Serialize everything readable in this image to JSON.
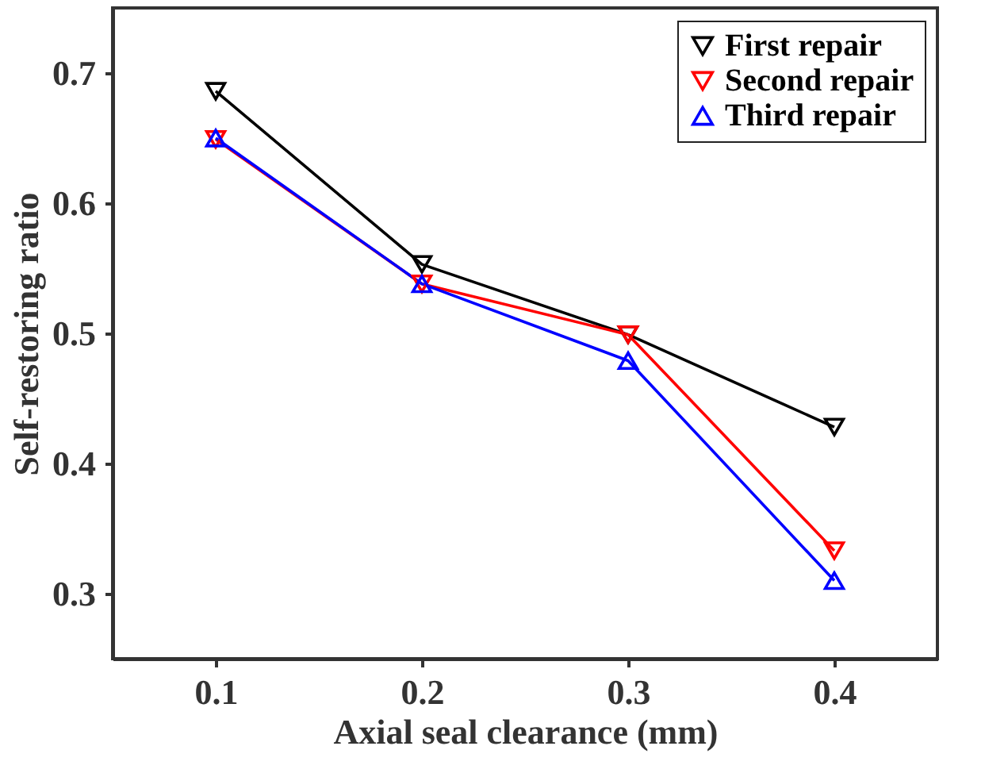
{
  "chart_data": {
    "type": "line",
    "xlabel": "Axial seal clearance (mm)",
    "ylabel": "Self-restoring ratio",
    "x": [
      0.1,
      0.2,
      0.3,
      0.4
    ],
    "xlim": [
      0.05,
      0.45
    ],
    "xticks": [
      0.1,
      0.2,
      0.3,
      0.4
    ],
    "ylim": [
      0.25,
      0.75
    ],
    "yticks": [
      0.3,
      0.4,
      0.5,
      0.6,
      0.7
    ],
    "grid": false,
    "legend": "top right",
    "line_style": "solid",
    "series": [
      {
        "name": "First repair",
        "color": "#000000",
        "marker": "triangle-down",
        "values": [
          0.686,
          0.553,
          0.499,
          0.428
        ]
      },
      {
        "name": "Second repair",
        "color": "#ff0000",
        "marker": "triangle-down",
        "values": [
          0.649,
          0.538,
          0.499,
          0.333
        ]
      },
      {
        "name": "Third repair",
        "color": "#0000ff",
        "marker": "triangle",
        "values": [
          0.65,
          0.538,
          0.479,
          0.31
        ]
      }
    ]
  }
}
